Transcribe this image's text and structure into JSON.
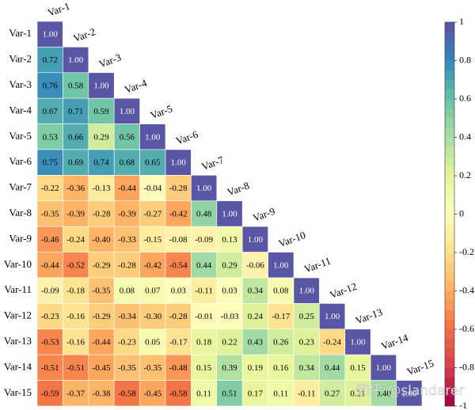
{
  "chart_data": {
    "type": "heatmap",
    "rows": [
      "Var-1",
      "Var-2",
      "Var-3",
      "Var-4",
      "Var-5",
      "Var-6",
      "Var-7",
      "Var-8",
      "Var-9",
      "Var-10",
      "Var-11",
      "Var-12",
      "Var-13",
      "Var-14",
      "Var-15"
    ],
    "columns": [
      "Var-1",
      "Var-2",
      "Var-3",
      "Var-4",
      "Var-5",
      "Var-6",
      "Var-7",
      "Var-8",
      "Var-9",
      "Var-10",
      "Var-11",
      "Var-12",
      "Var-13",
      "Var-14",
      "Var-15"
    ],
    "values": [
      [
        1
      ],
      [
        0.72,
        1
      ],
      [
        0.76,
        0.58,
        1
      ],
      [
        0.67,
        0.71,
        0.59,
        1
      ],
      [
        0.53,
        0.66,
        0.29,
        0.56,
        1
      ],
      [
        0.75,
        0.69,
        0.74,
        0.68,
        0.65,
        1
      ],
      [
        -0.22,
        -0.36,
        -0.13,
        -0.44,
        -0.04,
        -0.28,
        1
      ],
      [
        -0.35,
        -0.39,
        -0.28,
        -0.39,
        -0.27,
        -0.42,
        0.48,
        1
      ],
      [
        -0.46,
        -0.24,
        -0.4,
        -0.33,
        -0.15,
        -0.08,
        -0.09,
        0.13,
        1
      ],
      [
        -0.44,
        -0.52,
        -0.29,
        -0.28,
        -0.42,
        -0.54,
        0.44,
        0.29,
        -0.06,
        1
      ],
      [
        -0.09,
        -0.18,
        -0.35,
        0.08,
        0.07,
        0.03,
        -0.11,
        0.03,
        0.34,
        0.08,
        1
      ],
      [
        -0.23,
        -0.16,
        -0.29,
        -0.34,
        -0.3,
        -0.28,
        -0.01,
        -0.03,
        0.24,
        -0.17,
        0.25,
        1
      ],
      [
        -0.53,
        -0.16,
        -0.44,
        -0.23,
        0.05,
        -0.17,
        0.18,
        0.22,
        0.43,
        0.26,
        0.23,
        -0.24,
        1
      ],
      [
        -0.51,
        -0.51,
        -0.45,
        -0.35,
        -0.35,
        -0.48,
        0.15,
        0.39,
        0.19,
        0.16,
        0.34,
        0.44,
        0.15,
        1
      ],
      [
        -0.59,
        -0.37,
        -0.38,
        -0.58,
        -0.45,
        -0.58,
        0.11,
        0.51,
        0.17,
        0.11,
        -0.11,
        0.27,
        0.21,
        0.4,
        1
      ]
    ],
    "value_labels": [
      [
        "1.00"
      ],
      [
        "0.72",
        "1.00"
      ],
      [
        "0.76",
        "0.58",
        "1.00"
      ],
      [
        "0.67",
        "0.71",
        "0.59",
        "1.00"
      ],
      [
        "0.53",
        "0.66",
        "0.29",
        "0.56",
        "1.00"
      ],
      [
        "0.75",
        "0.69",
        "0.74",
        "0.68",
        "0.65",
        "1.00"
      ],
      [
        "-0.22",
        "-0.36",
        "-0.13",
        "-0.44",
        "-0.04",
        "-0.28",
        "1.00"
      ],
      [
        "-0.35",
        "-0.39",
        "-0.28",
        "-0.39",
        "-0.27",
        "-0.42",
        "0.48",
        "1.00"
      ],
      [
        "-0.46",
        "-0.24",
        "-0.40",
        "-0.33",
        "-0.15",
        "-0.08",
        "-0.09",
        "0.13",
        "1.00"
      ],
      [
        "-0.44",
        "-0.52",
        "-0.29",
        "-0.28",
        "-0.42",
        "-0.54",
        "0.44",
        "0.29",
        "-0.06",
        "1.00"
      ],
      [
        "-0.09",
        "-0.18",
        "-0.35",
        "0.08",
        "0.07",
        "0.03",
        "-0.11",
        "0.03",
        "0.34",
        "0.08",
        "1.00"
      ],
      [
        "-0.23",
        "-0.16",
        "-0.29",
        "-0.34",
        "-0.30",
        "-0.28",
        "-0.01",
        "-0.03",
        "0.24",
        "-0.17",
        "0.25",
        "1.00"
      ],
      [
        "-0.53",
        "-0.16",
        "-0.44",
        "-0.23",
        "0.05",
        "-0.17",
        "0.18",
        "0.22",
        "0.43",
        "0.26",
        "0.23",
        "-0.24",
        "1.00"
      ],
      [
        "-0.51",
        "-0.51",
        "-0.45",
        "-0.35",
        "-0.35",
        "-0.48",
        "0.15",
        "0.39",
        "0.19",
        "0.16",
        "0.34",
        "0.44",
        "0.15",
        "1.00"
      ],
      [
        "-0.59",
        "-0.37",
        "-0.38",
        "-0.58",
        "-0.45",
        "-0.58",
        "0.11",
        "0.51",
        "0.17",
        "0.11",
        "-0.11",
        "0.27",
        "0.21",
        "0.40",
        "1.00"
      ]
    ],
    "zlim": [
      -1,
      1
    ],
    "zticks": [
      1,
      0.8,
      0.6,
      0.4,
      0.2,
      0,
      -0.2,
      -0.4,
      -0.6,
      -0.8,
      -1
    ],
    "levels": 40,
    "colormap": [
      "#9e0142",
      "#d53e4f",
      "#f46d43",
      "#fdae61",
      "#fee08b",
      "#ffffbf",
      "#e6f598",
      "#abdda4",
      "#66c2a5",
      "#3288bd",
      "#5e4fa2"
    ],
    "watermark": "知乎 @slandarer"
  }
}
